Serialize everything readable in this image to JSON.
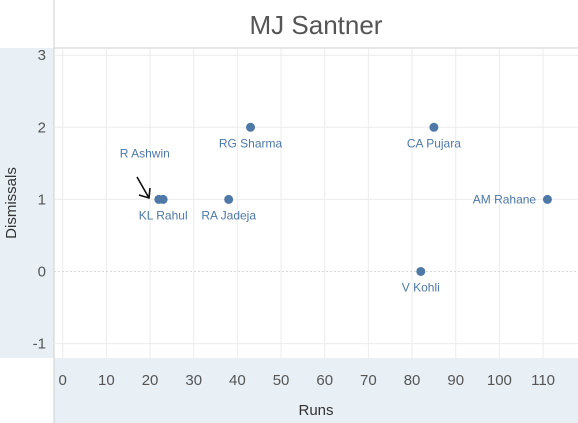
{
  "chart_data": {
    "type": "scatter",
    "title": "MJ Santner",
    "xlabel": "Runs",
    "ylabel": "Dismissals",
    "xlim": [
      -2,
      118
    ],
    "ylim": [
      -1.2,
      3.1
    ],
    "xticks": [
      0,
      10,
      20,
      30,
      40,
      50,
      60,
      70,
      80,
      90,
      100,
      110
    ],
    "yticks": [
      3,
      2,
      1,
      0,
      -1
    ],
    "grid": true,
    "points": [
      {
        "label": "R Ashwin",
        "x": 22,
        "y": 1
      },
      {
        "label": "KL Rahul",
        "x": 23,
        "y": 1
      },
      {
        "label": "RA Jadeja",
        "x": 38,
        "y": 1
      },
      {
        "label": "RG Sharma",
        "x": 43,
        "y": 2
      },
      {
        "label": "CA Pujara",
        "x": 85,
        "y": 2
      },
      {
        "label": "AM Rahane",
        "x": 111,
        "y": 1
      },
      {
        "label": "V Kohli",
        "x": 82,
        "y": 0
      }
    ]
  }
}
